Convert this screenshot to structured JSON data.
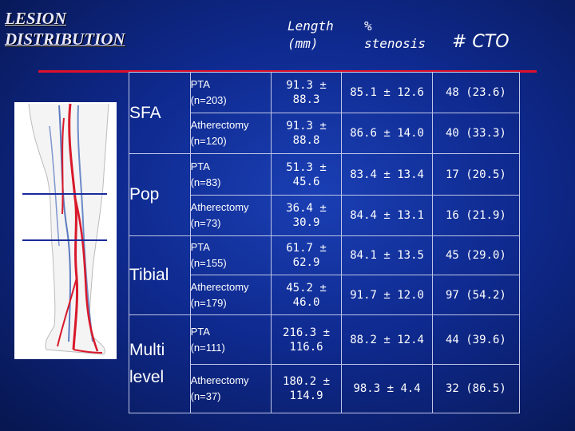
{
  "slide": {
    "title_line1": "LESION",
    "title_line2": "DISTRIBUTION"
  },
  "headers": {
    "length_line1": "Length",
    "length_line2": "(mm)",
    "stenosis_line1": "%",
    "stenosis_line2": "stenosis",
    "cto": "# CTO"
  },
  "colors": {
    "rule": "#e0102a",
    "vessel": "#d8182a",
    "background": "#0f2a8f"
  },
  "segments": [
    {
      "label_line1": "SFA",
      "label_line2": ""
    },
    {
      "label_line1": "Pop",
      "label_line2": ""
    },
    {
      "label_line1": "Tibial",
      "label_line2": ""
    },
    {
      "label_line1": "Multi",
      "label_line2": "level"
    }
  ],
  "rows": [
    {
      "proc": "PTA",
      "n": "(n=203)",
      "len_a": "91.3 ±",
      "len_b": "88.3",
      "stenosis": "85.1 ± 12.6",
      "cto": "48 (23.6)"
    },
    {
      "proc": "Atherectomy",
      "n": "(n=120)",
      "len_a": "91.3 ±",
      "len_b": "88.8",
      "stenosis": "86.6 ± 14.0",
      "cto": "40 (33.3)"
    },
    {
      "proc": "PTA",
      "n": "(n=83)",
      "len_a": "51.3 ±",
      "len_b": "45.6",
      "stenosis": "83.4 ± 13.4",
      "cto": "17 (20.5)"
    },
    {
      "proc": "Atherectomy",
      "n": "(n=73)",
      "len_a": "36.4 ±",
      "len_b": "30.9",
      "stenosis": "84.4 ± 13.1",
      "cto": "16 (21.9)"
    },
    {
      "proc": "PTA",
      "n": "(n=155)",
      "len_a": "61.7 ±",
      "len_b": "62.9",
      "stenosis": "84.1 ± 13.5",
      "cto": "45 (29.0)"
    },
    {
      "proc": "Atherectomy",
      "n": "(n=179)",
      "len_a": "45.2 ±",
      "len_b": "46.0",
      "stenosis": "91.7 ± 12.0",
      "cto": "97 (54.2)"
    },
    {
      "proc": "PTA",
      "n": "(n=111)",
      "len_a": "216.3 ±",
      "len_b": "116.6",
      "stenosis": "88.2 ± 12.4",
      "cto": "44 (39.6)"
    },
    {
      "proc": "Atherectomy",
      "n": "(n=37)",
      "len_a": "180.2 ±",
      "len_b": "114.9",
      "stenosis": "98.3 ± 4.4",
      "cto": "32 (86.5)"
    }
  ]
}
